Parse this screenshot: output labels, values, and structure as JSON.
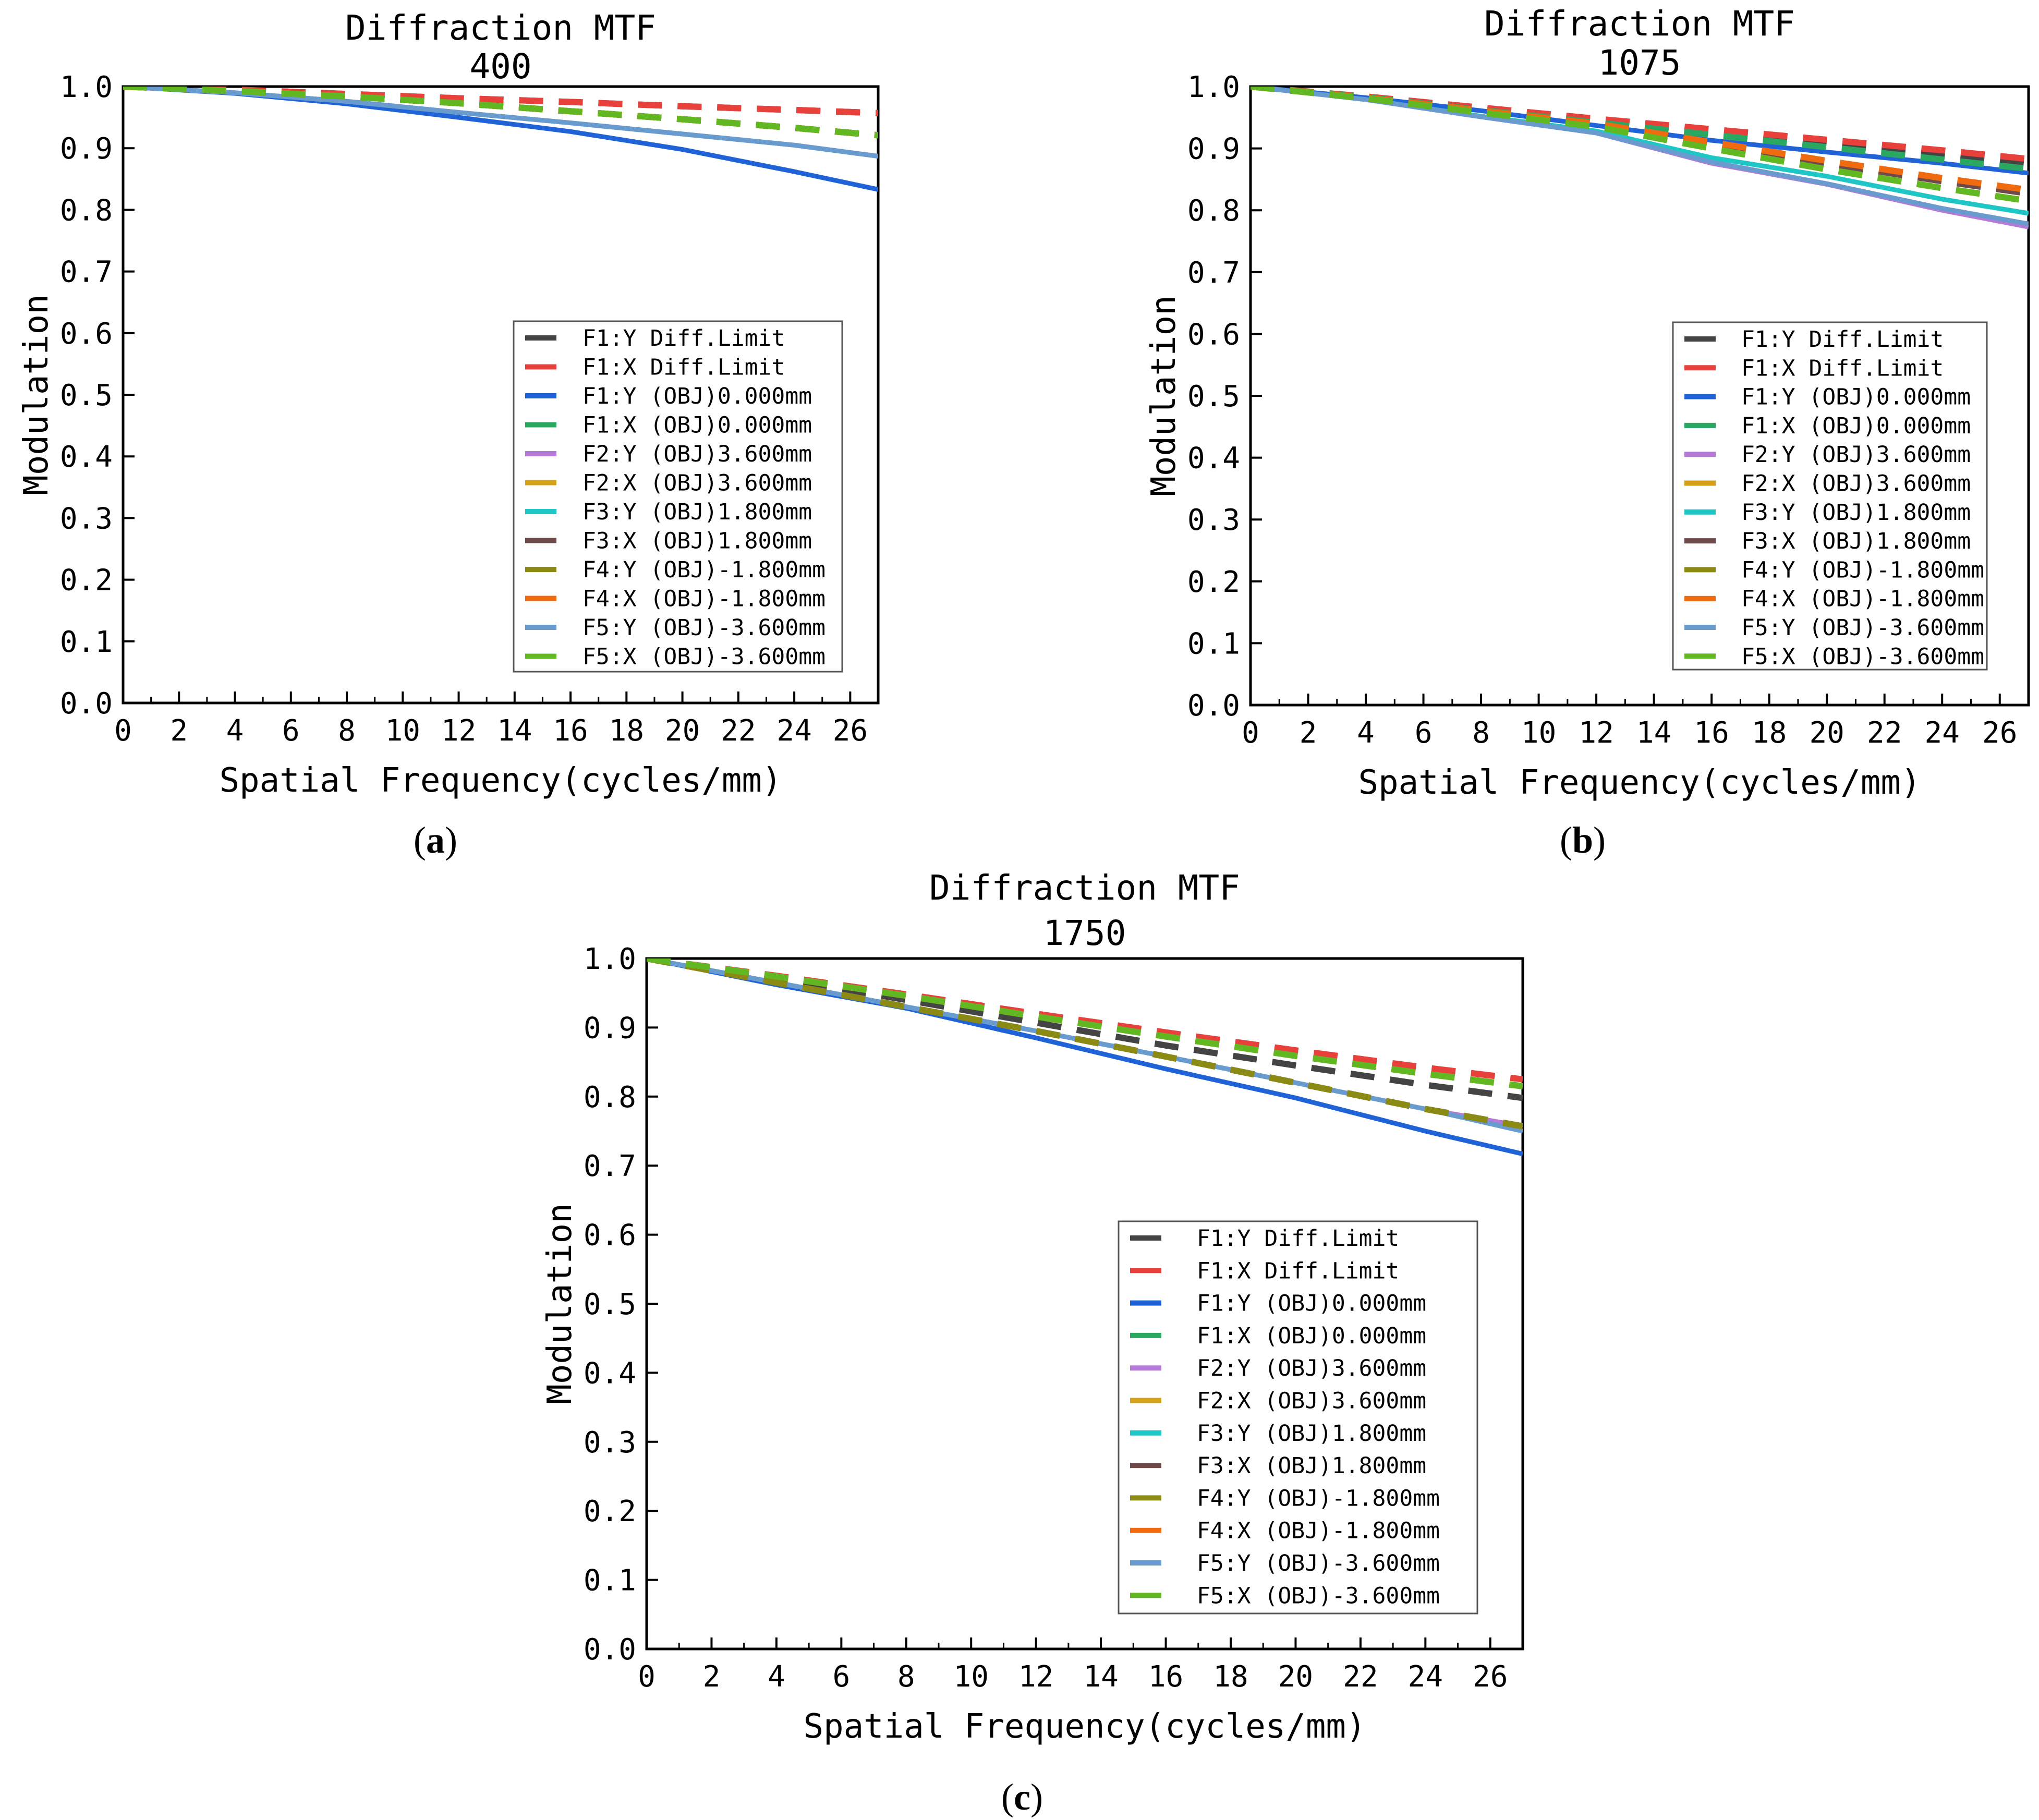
{
  "chart_data": [
    {
      "type": "line",
      "panel_label": "a",
      "title": "Diffraction MTF",
      "subtitle": "400",
      "xlabel": "Spatial Frequency(cycles/mm)",
      "ylabel": "Modulation",
      "xlim": [
        0,
        27
      ],
      "ylim": [
        0,
        1
      ],
      "xticks": [
        "0",
        "2",
        "4",
        "6",
        "8",
        "10",
        "12",
        "14",
        "16",
        "18",
        "20",
        "22",
        "24",
        "26"
      ],
      "yticks": [
        "0.0",
        "0.1",
        "0.2",
        "0.3",
        "0.4",
        "0.5",
        "0.6",
        "0.7",
        "0.8",
        "0.9",
        "1.0"
      ],
      "legend_position": "lower-right",
      "x": [
        0,
        4,
        8,
        12,
        16,
        20,
        24,
        27
      ],
      "series": [
        {
          "name": "F1:Y Diff.Limit",
          "color": "#444444",
          "dash": true,
          "values": [
            1.0,
            0.995,
            0.988,
            0.981,
            0.975,
            0.968,
            0.962,
            0.957
          ]
        },
        {
          "name": "F1:X Diff.Limit",
          "color": "#e8413c",
          "dash": true,
          "values": [
            1.0,
            0.995,
            0.988,
            0.981,
            0.975,
            0.968,
            0.962,
            0.957
          ]
        },
        {
          "name": "F1:Y (OBJ)0.000mm",
          "color": "#1f63d6",
          "dash": false,
          "values": [
            1.0,
            0.989,
            0.972,
            0.95,
            0.927,
            0.898,
            0.862,
            0.833
          ]
        },
        {
          "name": "F1:X (OBJ)0.000mm",
          "color": "#2aa862",
          "dash": true,
          "values": [
            1.0,
            0.993,
            0.984,
            0.973,
            0.96,
            0.947,
            0.933,
            0.921
          ]
        },
        {
          "name": "F2:Y (OBJ)3.600mm",
          "color": "#b57ad8",
          "dash": false,
          "values": [
            1.0,
            0.99,
            0.976,
            0.958,
            0.941,
            0.923,
            0.905,
            0.887
          ]
        },
        {
          "name": "F2:X (OBJ)3.600mm",
          "color": "#d4a017",
          "dash": true,
          "values": [
            1.0,
            0.993,
            0.984,
            0.973,
            0.96,
            0.947,
            0.933,
            0.921
          ]
        },
        {
          "name": "F3:Y (OBJ)1.800mm",
          "color": "#1fc6c6",
          "dash": false,
          "values": [
            1.0,
            0.99,
            0.976,
            0.958,
            0.941,
            0.923,
            0.905,
            0.887
          ]
        },
        {
          "name": "F3:X (OBJ)1.800mm",
          "color": "#6e4a4a",
          "dash": true,
          "values": [
            1.0,
            0.993,
            0.984,
            0.973,
            0.96,
            0.947,
            0.933,
            0.921
          ]
        },
        {
          "name": "F4:Y (OBJ)-1.800mm",
          "color": "#8a8a14",
          "dash": true,
          "values": [
            1.0,
            0.993,
            0.984,
            0.973,
            0.96,
            0.947,
            0.933,
            0.921
          ]
        },
        {
          "name": "F4:X (OBJ)-1.800mm",
          "color": "#f06a10",
          "dash": true,
          "values": [
            1.0,
            0.993,
            0.984,
            0.973,
            0.96,
            0.947,
            0.933,
            0.921
          ]
        },
        {
          "name": "F5:Y (OBJ)-3.600mm",
          "color": "#6a9bcf",
          "dash": false,
          "values": [
            1.0,
            0.99,
            0.976,
            0.958,
            0.941,
            0.923,
            0.905,
            0.887
          ]
        },
        {
          "name": "F5:X (OBJ)-3.600mm",
          "color": "#62b822",
          "dash": true,
          "values": [
            1.0,
            0.993,
            0.984,
            0.973,
            0.96,
            0.947,
            0.933,
            0.921
          ]
        }
      ]
    },
    {
      "type": "line",
      "panel_label": "b",
      "title": "Diffraction MTF",
      "subtitle": "1075",
      "xlabel": "Spatial Frequency(cycles/mm)",
      "ylabel": "Modulation",
      "xlim": [
        0,
        27
      ],
      "ylim": [
        0,
        1
      ],
      "xticks": [
        "0",
        "2",
        "4",
        "6",
        "8",
        "10",
        "12",
        "14",
        "16",
        "18",
        "20",
        "22",
        "24",
        "26"
      ],
      "yticks": [
        "0.0",
        "0.1",
        "0.2",
        "0.3",
        "0.4",
        "0.5",
        "0.6",
        "0.7",
        "0.8",
        "0.9",
        "1.0"
      ],
      "legend_position": "lower-right",
      "x": [
        0,
        4,
        8,
        12,
        16,
        20,
        24,
        27
      ],
      "series": [
        {
          "name": "F1:Y Diff.Limit",
          "color": "#444444",
          "dash": true,
          "values": [
            1.0,
            0.983,
            0.963,
            0.944,
            0.926,
            0.906,
            0.888,
            0.873
          ]
        },
        {
          "name": "F1:X Diff.Limit",
          "color": "#e8413c",
          "dash": true,
          "values": [
            1.0,
            0.984,
            0.966,
            0.948,
            0.931,
            0.914,
            0.897,
            0.883
          ]
        },
        {
          "name": "F1:Y (OBJ)0.000mm",
          "color": "#1f63d6",
          "dash": false,
          "values": [
            1.0,
            0.982,
            0.961,
            0.937,
            0.913,
            0.894,
            0.876,
            0.86
          ]
        },
        {
          "name": "F1:X (OBJ)0.000mm",
          "color": "#2aa862",
          "dash": true,
          "values": [
            1.0,
            0.983,
            0.962,
            0.942,
            0.922,
            0.902,
            0.882,
            0.867
          ]
        },
        {
          "name": "F2:Y (OBJ)3.600mm",
          "color": "#b57ad8",
          "dash": false,
          "values": [
            1.0,
            0.979,
            0.951,
            0.925,
            0.876,
            0.842,
            0.8,
            0.773
          ]
        },
        {
          "name": "F2:X (OBJ)3.600mm",
          "color": "#d4a017",
          "dash": true,
          "values": [
            1.0,
            0.982,
            0.96,
            0.938,
            0.906,
            0.876,
            0.847,
            0.827
          ]
        },
        {
          "name": "F3:Y (OBJ)1.800mm",
          "color": "#1fc6c6",
          "dash": false,
          "values": [
            1.0,
            0.979,
            0.952,
            0.928,
            0.885,
            0.855,
            0.818,
            0.795
          ]
        },
        {
          "name": "F3:X (OBJ)1.800mm",
          "color": "#6e4a4a",
          "dash": true,
          "values": [
            1.0,
            0.982,
            0.96,
            0.938,
            0.906,
            0.876,
            0.847,
            0.827
          ]
        },
        {
          "name": "F4:Y (OBJ)-1.800mm",
          "color": "#8a8a14",
          "dash": true,
          "values": [
            1.0,
            0.981,
            0.958,
            0.935,
            0.9,
            0.866,
            0.836,
            0.815
          ]
        },
        {
          "name": "F4:X (OBJ)-1.800mm",
          "color": "#f06a10",
          "dash": true,
          "values": [
            1.0,
            0.982,
            0.961,
            0.94,
            0.91,
            0.88,
            0.852,
            0.833
          ]
        },
        {
          "name": "F5:Y (OBJ)-3.600mm",
          "color": "#6a9bcf",
          "dash": false,
          "values": [
            1.0,
            0.979,
            0.951,
            0.925,
            0.878,
            0.843,
            0.803,
            0.778
          ]
        },
        {
          "name": "F5:X (OBJ)-3.600mm",
          "color": "#62b822",
          "dash": true,
          "values": [
            1.0,
            0.981,
            0.958,
            0.935,
            0.9,
            0.866,
            0.836,
            0.815
          ]
        }
      ]
    },
    {
      "type": "line",
      "panel_label": "c",
      "title": "Diffraction MTF",
      "subtitle": "1750",
      "xlabel": "Spatial Frequency(cycles/mm)",
      "ylabel": "Modulation",
      "xlim": [
        0,
        27
      ],
      "ylim": [
        0,
        1
      ],
      "xticks": [
        "0",
        "2",
        "4",
        "6",
        "8",
        "10",
        "12",
        "14",
        "16",
        "18",
        "20",
        "22",
        "24",
        "26"
      ],
      "yticks": [
        "0.0",
        "0.1",
        "0.2",
        "0.3",
        "0.4",
        "0.5",
        "0.6",
        "0.7",
        "0.8",
        "0.9",
        "1.0"
      ],
      "legend_position": "lower-right",
      "x": [
        0,
        4,
        8,
        12,
        16,
        20,
        24,
        27
      ],
      "series": [
        {
          "name": "F1:Y Diff.Limit",
          "color": "#444444",
          "dash": true,
          "values": [
            1.0,
            0.972,
            0.94,
            0.907,
            0.874,
            0.845,
            0.817,
            0.798
          ]
        },
        {
          "name": "F1:X Diff.Limit",
          "color": "#e8413c",
          "dash": true,
          "values": [
            1.0,
            0.975,
            0.948,
            0.92,
            0.893,
            0.867,
            0.842,
            0.825
          ]
        },
        {
          "name": "F1:Y (OBJ)0.000mm",
          "color": "#1f63d6",
          "dash": false,
          "values": [
            1.0,
            0.962,
            0.928,
            0.885,
            0.84,
            0.798,
            0.75,
            0.717
          ]
        },
        {
          "name": "F1:X (OBJ)0.000mm",
          "color": "#2aa862",
          "dash": true,
          "values": [
            1.0,
            0.974,
            0.946,
            0.916,
            0.887,
            0.859,
            0.833,
            0.815
          ]
        },
        {
          "name": "F2:Y (OBJ)3.600mm",
          "color": "#b57ad8",
          "dash": false,
          "values": [
            1.0,
            0.965,
            0.93,
            0.895,
            0.858,
            0.82,
            0.782,
            0.757
          ]
        },
        {
          "name": "F2:X (OBJ)3.600mm",
          "color": "#d4a017",
          "dash": true,
          "values": [
            1.0,
            0.965,
            0.93,
            0.895,
            0.858,
            0.82,
            0.782,
            0.757
          ]
        },
        {
          "name": "F3:Y (OBJ)1.800mm",
          "color": "#1fc6c6",
          "dash": false,
          "values": [
            1.0,
            0.965,
            0.93,
            0.895,
            0.858,
            0.82,
            0.782,
            0.75
          ]
        },
        {
          "name": "F3:X (OBJ)1.800mm",
          "color": "#6e4a4a",
          "dash": true,
          "values": [
            1.0,
            0.965,
            0.93,
            0.895,
            0.858,
            0.82,
            0.782,
            0.757
          ]
        },
        {
          "name": "F4:Y (OBJ)-1.800mm",
          "color": "#8a8a14",
          "dash": true,
          "values": [
            1.0,
            0.965,
            0.93,
            0.895,
            0.858,
            0.82,
            0.782,
            0.757
          ]
        },
        {
          "name": "F4:X (OBJ)-1.800mm",
          "color": "#f06a10",
          "dash": true,
          "values": [
            1.0,
            0.974,
            0.946,
            0.916,
            0.887,
            0.859,
            0.833,
            0.815
          ]
        },
        {
          "name": "F5:Y (OBJ)-3.600mm",
          "color": "#6a9bcf",
          "dash": false,
          "values": [
            1.0,
            0.965,
            0.93,
            0.895,
            0.858,
            0.82,
            0.782,
            0.75
          ]
        },
        {
          "name": "F5:X (OBJ)-3.600mm",
          "color": "#62b822",
          "dash": true,
          "values": [
            1.0,
            0.974,
            0.946,
            0.916,
            0.887,
            0.859,
            0.833,
            0.815
          ]
        }
      ]
    }
  ]
}
